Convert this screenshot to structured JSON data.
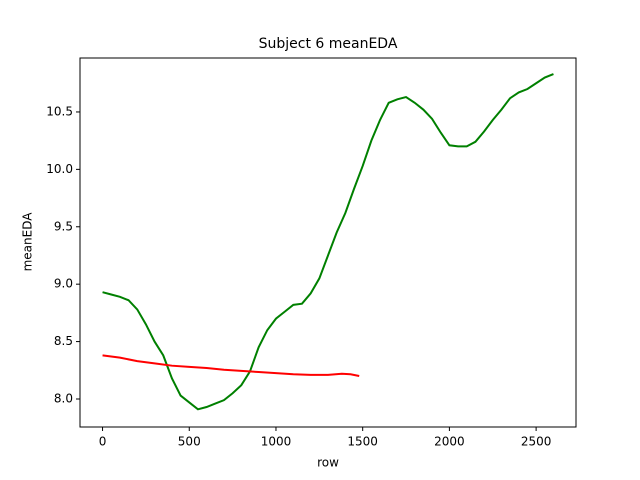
{
  "chart_data": {
    "type": "line",
    "title": "Subject 6 meanEDA",
    "x_label": "row",
    "y_label": "meanEDA",
    "xlim": [
      -130,
      2730
    ],
    "ylim": [
      7.756,
      10.97
    ],
    "xticks": [
      0,
      500,
      1000,
      1500,
      2000,
      2500
    ],
    "yticks": [
      {
        "value": 8,
        "label": "8.0"
      },
      8.5,
      {
        "value": 9,
        "label": "9.0"
      },
      9.5,
      {
        "value": 10,
        "label": "10.0"
      },
      10.5
    ],
    "series": [
      {
        "color": "#008000",
        "x": [
          0,
          50,
          100,
          150,
          200,
          250,
          300,
          350,
          400,
          450,
          500,
          550,
          600,
          650,
          700,
          750,
          800,
          850,
          900,
          950,
          1000,
          1050,
          1100,
          1150,
          1200,
          1250,
          1300,
          1350,
          1400,
          1450,
          1500,
          1550,
          1600,
          1650,
          1700,
          1750,
          1800,
          1850,
          1900,
          1950,
          2000,
          2050,
          2100,
          2150,
          2200,
          2250,
          2300,
          2350,
          2400,
          2450,
          2500,
          2550,
          2600
        ],
        "values": [
          8.93,
          8.91,
          8.89,
          8.86,
          8.78,
          8.65,
          8.5,
          8.38,
          8.18,
          8.03,
          7.97,
          7.91,
          7.93,
          7.96,
          7.99,
          8.05,
          8.12,
          8.24,
          8.45,
          8.6,
          8.7,
          8.76,
          8.82,
          8.83,
          8.92,
          9.05,
          9.25,
          9.45,
          9.62,
          9.83,
          10.03,
          10.25,
          10.43,
          10.58,
          10.61,
          10.63,
          10.58,
          10.52,
          10.44,
          10.32,
          10.21,
          10.2,
          10.2,
          10.24,
          10.33,
          10.43,
          10.52,
          10.62,
          10.67,
          10.7,
          10.75,
          10.8,
          10.83
        ]
      },
      {
        "color": "#ff0000",
        "x": [
          0,
          100,
          200,
          300,
          400,
          500,
          600,
          700,
          800,
          900,
          1000,
          1100,
          1200,
          1300,
          1380,
          1430,
          1480
        ],
        "values": [
          8.38,
          8.36,
          8.33,
          8.31,
          8.29,
          8.28,
          8.27,
          8.255,
          8.245,
          8.235,
          8.225,
          8.215,
          8.21,
          8.21,
          8.22,
          8.215,
          8.2
        ]
      }
    ]
  }
}
